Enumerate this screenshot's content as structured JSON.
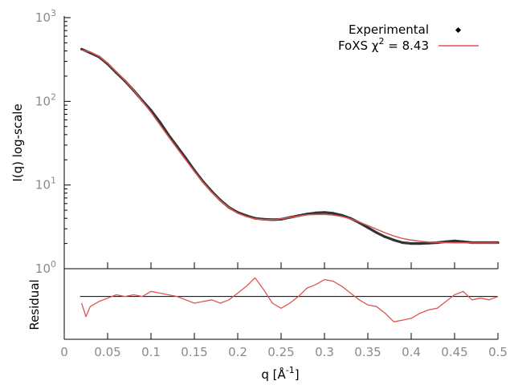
{
  "chart_data": [
    {
      "panel": "top",
      "type": "line",
      "ylabel": "I(q) log-scale",
      "xlim": [
        0,
        0.5
      ],
      "ylim": [
        1,
        1000
      ],
      "yscale": "log",
      "y_ticks": [
        {
          "base": "10",
          "exp": "0"
        },
        {
          "base": "10",
          "exp": "1"
        },
        {
          "base": "10",
          "exp": "2"
        },
        {
          "base": "10",
          "exp": "3"
        }
      ],
      "grid": false,
      "legend_position": "top-right",
      "legend": {
        "experimental_label": "Experimental",
        "fit_label_prefix": "FoXS χ",
        "fit_label_exp": "2",
        "fit_label_suffix": " = 8.43"
      },
      "colors": {
        "experimental": "#333333",
        "fit": "#dd5555",
        "axis": "#000000",
        "tick_text": "#8a8a8a"
      },
      "series": [
        {
          "name": "Experimental",
          "x": [
            0.02,
            0.03,
            0.04,
            0.05,
            0.06,
            0.07,
            0.08,
            0.09,
            0.1,
            0.11,
            0.12,
            0.13,
            0.14,
            0.15,
            0.16,
            0.17,
            0.18,
            0.19,
            0.2,
            0.21,
            0.22,
            0.23,
            0.24,
            0.25,
            0.26,
            0.27,
            0.28,
            0.29,
            0.3,
            0.31,
            0.32,
            0.33,
            0.34,
            0.35,
            0.36,
            0.37,
            0.38,
            0.39,
            0.4,
            0.41,
            0.42,
            0.43,
            0.44,
            0.45,
            0.46,
            0.47,
            0.48,
            0.49,
            0.5
          ],
          "y": [
            420,
            380,
            340,
            280,
            220,
            175,
            135,
            102,
            78,
            57,
            40,
            29,
            21,
            15,
            11,
            8.4,
            6.6,
            5.4,
            4.7,
            4.3,
            4.0,
            3.9,
            3.85,
            3.9,
            4.1,
            4.3,
            4.5,
            4.65,
            4.7,
            4.6,
            4.35,
            4.0,
            3.55,
            3.1,
            2.7,
            2.4,
            2.2,
            2.05,
            2.0,
            2.0,
            2.02,
            2.05,
            2.1,
            2.15,
            2.1,
            2.05,
            2.05,
            2.05,
            2.05
          ]
        },
        {
          "name": "FoXS χ2 = 8.43",
          "x": [
            0.02,
            0.03,
            0.04,
            0.05,
            0.06,
            0.07,
            0.08,
            0.09,
            0.1,
            0.11,
            0.12,
            0.13,
            0.14,
            0.15,
            0.16,
            0.17,
            0.18,
            0.19,
            0.2,
            0.21,
            0.22,
            0.23,
            0.24,
            0.25,
            0.26,
            0.27,
            0.28,
            0.29,
            0.3,
            0.31,
            0.32,
            0.33,
            0.34,
            0.35,
            0.36,
            0.37,
            0.38,
            0.39,
            0.4,
            0.41,
            0.42,
            0.43,
            0.44,
            0.45,
            0.46,
            0.47,
            0.48,
            0.49,
            0.5
          ],
          "y": [
            410,
            390,
            345,
            285,
            225,
            178,
            136,
            100,
            74,
            53,
            38,
            27.5,
            20,
            14.5,
            10.8,
            8.2,
            6.5,
            5.35,
            4.6,
            4.2,
            3.95,
            3.85,
            3.85,
            3.95,
            4.1,
            4.25,
            4.4,
            4.45,
            4.45,
            4.38,
            4.2,
            3.95,
            3.62,
            3.28,
            2.96,
            2.68,
            2.46,
            2.3,
            2.2,
            2.13,
            2.08,
            2.06,
            2.05,
            2.04,
            2.04,
            2.03,
            2.03,
            2.03,
            2.03
          ]
        }
      ]
    },
    {
      "panel": "bottom",
      "type": "line",
      "ylabel": "Residual",
      "xlabel_prefix": "q [Å",
      "xlabel_exp": "-1",
      "xlabel_suffix": "]",
      "xlim": [
        0,
        0.5
      ],
      "ylim": [
        -1.15,
        0.75
      ],
      "x_ticks": [
        "0",
        "0.05",
        "0.1",
        "0.15",
        "0.2",
        "0.25",
        "0.3",
        "0.35",
        "0.4",
        "0.45",
        "0.5"
      ],
      "x_tick_values": [
        0,
        0.05,
        0.1,
        0.15,
        0.2,
        0.25,
        0.3,
        0.35,
        0.4,
        0.45,
        0.5
      ],
      "reference_line": 0,
      "colors": {
        "residual": "#dd5555",
        "reference": "#000000"
      },
      "series": [
        {
          "name": "Residual",
          "x": [
            0.02,
            0.025,
            0.03,
            0.04,
            0.05,
            0.06,
            0.07,
            0.08,
            0.09,
            0.1,
            0.11,
            0.12,
            0.13,
            0.14,
            0.15,
            0.16,
            0.17,
            0.18,
            0.19,
            0.2,
            0.21,
            0.22,
            0.23,
            0.24,
            0.25,
            0.26,
            0.27,
            0.28,
            0.29,
            0.3,
            0.31,
            0.32,
            0.33,
            0.34,
            0.35,
            0.36,
            0.37,
            0.38,
            0.39,
            0.4,
            0.41,
            0.42,
            0.43,
            0.44,
            0.45,
            0.46,
            0.47,
            0.48,
            0.49,
            0.5
          ],
          "y": [
            -0.2,
            -0.6,
            -0.3,
            -0.15,
            -0.05,
            0.05,
            0.0,
            0.05,
            0.0,
            0.15,
            0.1,
            0.05,
            0.0,
            -0.1,
            -0.2,
            -0.15,
            -0.1,
            -0.2,
            -0.1,
            0.1,
            0.3,
            0.55,
            0.2,
            -0.2,
            -0.35,
            -0.2,
            0.0,
            0.25,
            0.35,
            0.5,
            0.45,
            0.3,
            0.1,
            -0.1,
            -0.25,
            -0.3,
            -0.5,
            -0.75,
            -0.7,
            -0.65,
            -0.5,
            -0.4,
            -0.35,
            -0.15,
            0.05,
            0.15,
            -0.1,
            -0.05,
            -0.1,
            0.0
          ]
        }
      ]
    }
  ]
}
